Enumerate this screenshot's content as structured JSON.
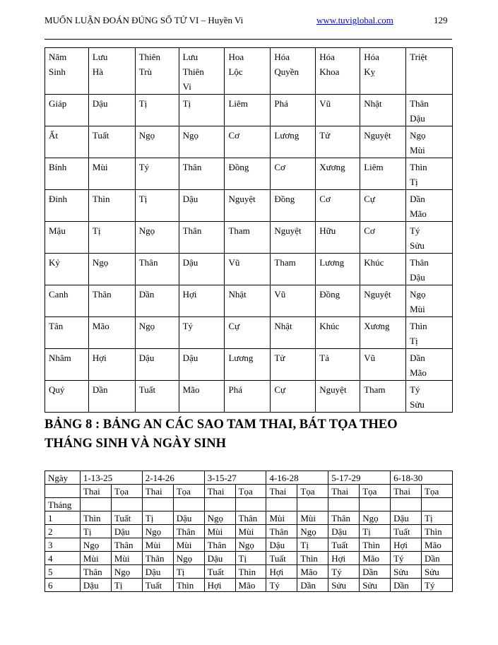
{
  "header": {
    "title": "MUỐN LUẬN ĐOÁN ĐÚNG SỐ TỬ VI – Huyền Vi",
    "url": "www.tuviglobal.com",
    "page": "129"
  },
  "table1": {
    "headers": [
      [
        "Năm",
        "Sinh"
      ],
      [
        "Lưu",
        "Hà"
      ],
      [
        "Thiên",
        "Trù"
      ],
      [
        "Lưu",
        "Thiên",
        "Vi"
      ],
      [
        "Hoa",
        "Lộc"
      ],
      [
        "Hóa",
        "Quyền"
      ],
      [
        "Hóa",
        "Khoa"
      ],
      [
        "Hóa",
        " Kỵ"
      ],
      [
        "Triệt"
      ]
    ],
    "rows": [
      [
        "Giáp",
        "Dậu",
        "Tị",
        "Tị",
        "Liêm",
        "Phá",
        "Vũ",
        "Nhật",
        [
          "Thân",
          "Dậu"
        ]
      ],
      [
        "Ất",
        "Tuất",
        "Ngọ",
        "Ngọ",
        "Cơ",
        "Lương",
        "Tử",
        "Nguyệt",
        [
          "Ngọ",
          "Mùi"
        ]
      ],
      [
        "Bính",
        "Mùi",
        "Tý",
        "Thân",
        "Đồng",
        "Cơ",
        "Xương",
        "Liêm",
        [
          "Thìn",
          "Tị"
        ]
      ],
      [
        "Đinh",
        "Thìn",
        "Tị",
        "Dậu",
        "Nguyệt",
        "Đồng",
        "Cơ",
        "Cự",
        [
          "Dần",
          "Mão"
        ]
      ],
      [
        "Mậu",
        "Tị",
        "Ngọ",
        "Thân",
        "Tham",
        "Nguyệt",
        "Hữu",
        "Cơ",
        [
          "Tý",
          "Sửu"
        ]
      ],
      [
        "Kỷ",
        "Ngọ",
        "Thân",
        "Dậu",
        "Vũ",
        "Tham",
        "Lương",
        "Khúc",
        [
          "Thân",
          "Dậu"
        ]
      ],
      [
        "Canh",
        "Thân",
        "Dần",
        "Hợi",
        "Nhật",
        "Vũ",
        "Đồng",
        "Nguyệt",
        [
          "Ngọ",
          "Mùi"
        ]
      ],
      [
        "Tân",
        "Mão",
        "Ngọ",
        "Tý",
        "Cự",
        "Nhật",
        "Khúc",
        "Xương",
        [
          "Thìn",
          "Tị"
        ]
      ],
      [
        "Nhâm",
        "Hợi",
        "Dậu",
        "Dậu",
        "Lương",
        "Tử",
        "Tả",
        "Vũ",
        [
          "Dần",
          "Mão"
        ]
      ],
      [
        "Quý",
        "Dần",
        "Tuất",
        "Mão",
        "Phá",
        "Cự",
        "Nguyệt",
        "Tham",
        [
          "Tý",
          "Sửu"
        ]
      ]
    ]
  },
  "section_title": [
    "BẢNG 8 : BẢNG AN CÁC SAO TAM THAI, BÁT TỌA THEO",
    "THÁNG SINH VÀ NGÀY SINH"
  ],
  "table2": {
    "day_label": "Ngày",
    "day_groups": [
      "1-13-25",
      "2-14-26",
      "3-15-27",
      "4-16-28",
      "5-17-29",
      "6-18-30"
    ],
    "sub": [
      "Thai",
      "Tọa"
    ],
    "month_label": "Tháng",
    "rows": [
      [
        "1",
        "Thìn",
        "Tuất",
        "Tị",
        "Dậu",
        "Ngọ",
        "Thân",
        "Mùi",
        "Mùi",
        "Thân",
        "Ngọ",
        "Dậu",
        "Tị"
      ],
      [
        "2",
        "Tị",
        "Dậu",
        "Ngọ",
        "Thân",
        "Mùi",
        "Mùi",
        "Thân",
        "Ngọ",
        "Dậu",
        "Tị",
        "Tuất",
        "Thìn"
      ],
      [
        "3",
        "Ngọ",
        "Thân",
        "Mùi",
        "Mùi",
        "Thân",
        "Ngọ",
        "Dậu",
        "Tị",
        "Tuất",
        "Thìn",
        "Hợi",
        "Mão"
      ],
      [
        "4",
        "Mùi",
        "Mùi",
        "Thân",
        "Ngọ",
        "Dậu",
        "Tị",
        "Tuất",
        "Thìn",
        "Hợi",
        "Mão",
        "Tý",
        "Dần"
      ],
      [
        "5",
        "Thân",
        "Ngọ",
        "Dậu",
        "Tị",
        "Tuất",
        "Thìn",
        "Hợi",
        "Mão",
        "Tý",
        "Dần",
        "Sửu",
        "Sửu"
      ],
      [
        "6",
        "Dậu",
        "Tị",
        "Tuất",
        "Thìn",
        "Hợi",
        "Mão",
        "Tý",
        "Dần",
        "Sửu",
        "Sửu",
        "Dần",
        "Tý"
      ]
    ]
  }
}
